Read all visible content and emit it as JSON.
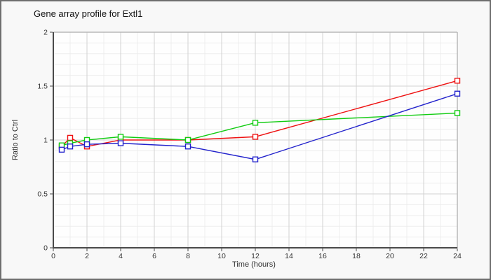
{
  "window": {
    "background": "#f8f8f8",
    "border_color": "#6e6e6e",
    "plot_background": "#fefefe",
    "minor_grid_color": "#ededed",
    "major_grid_color": "#d2d2d2",
    "frame_color": "#b8b8b8",
    "axis_color": "#4a4a4a",
    "tick_label_color": "#333333"
  },
  "chart_data": {
    "type": "line",
    "title": "Gene array profile for Extl1",
    "xlabel": "Time (hours)",
    "ylabel": "Ratio to Ctrl",
    "x": [
      0.5,
      1,
      2,
      4,
      8,
      12,
      24
    ],
    "series": [
      {
        "name": "red-series",
        "color": "#ee1111",
        "values": [
          0.94,
          1.02,
          0.94,
          1.0,
          1.0,
          1.03,
          1.55
        ]
      },
      {
        "name": "green-series",
        "color": "#11cc11",
        "values": [
          0.95,
          0.97,
          1.0,
          1.03,
          1.0,
          1.16,
          1.25
        ]
      },
      {
        "name": "blue-series",
        "color": "#2222cc",
        "values": [
          0.91,
          0.94,
          0.96,
          0.97,
          0.94,
          0.82,
          1.43
        ]
      }
    ],
    "xlim": [
      0,
      24
    ],
    "ylim": [
      0,
      2
    ],
    "x_ticks": [
      0,
      2,
      4,
      6,
      8,
      10,
      12,
      14,
      16,
      18,
      20,
      22,
      24
    ],
    "y_ticks": [
      0,
      0.5,
      1,
      1.5,
      2
    ],
    "x_minor_step": 1,
    "y_minor_step": 0.1,
    "grid": "on",
    "legend": "none",
    "marker": "open-square"
  }
}
